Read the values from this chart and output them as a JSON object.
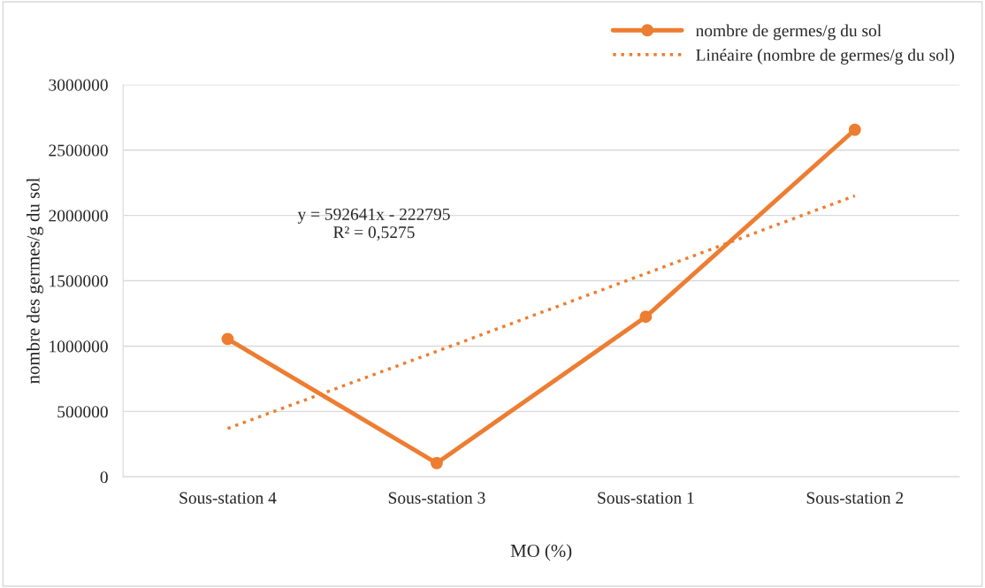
{
  "chart_data": {
    "type": "line",
    "xlabel": "MO (%)",
    "ylabel": "nombre des germes/g du sol",
    "categories": [
      "Sous-station 4",
      "Sous-station 3",
      "Sous-station 1",
      "Sous-station 2"
    ],
    "series": [
      {
        "name": "nombre de germes/g du sol",
        "color": "#ed7d31",
        "values": [
          1055000,
          105000,
          1225000,
          2655000
        ],
        "marker": "circle",
        "line_style": "solid"
      },
      {
        "name": "Linéaire (nombre de germes/g du sol)",
        "color": "#ed7d31",
        "values": [
          370000,
          960000,
          1555000,
          2150000
        ],
        "marker": "none",
        "line_style": "dotted"
      }
    ],
    "ylim": [
      0,
      3000000
    ],
    "yticks": [
      0,
      500000,
      1000000,
      1500000,
      2000000,
      2500000,
      3000000
    ],
    "grid": "y",
    "legend": "top right",
    "annotations": [
      "y = 592641x - 222795\nR² = 0,5275"
    ]
  }
}
